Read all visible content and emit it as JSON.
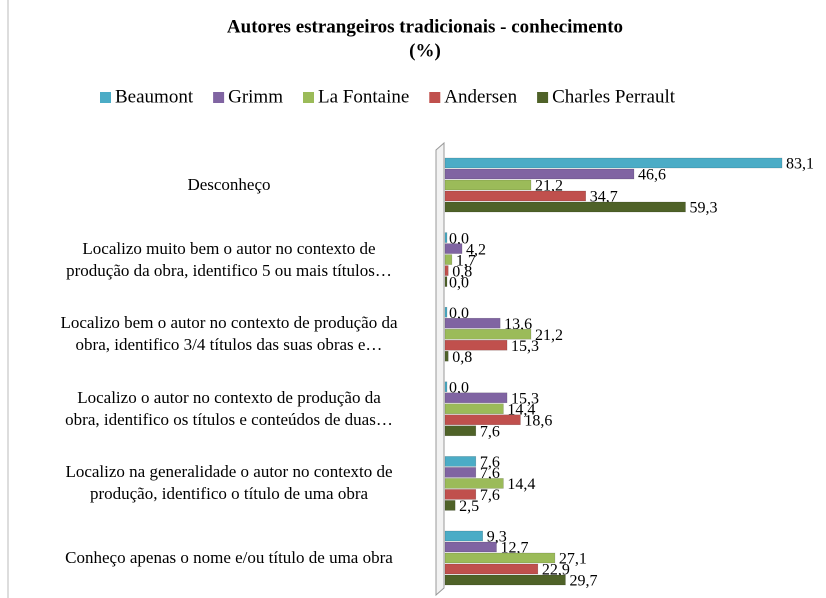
{
  "chart_data": {
    "type": "bar",
    "orientation": "horizontal",
    "title": "Autores estrangeiros tradicionais - conhecimento",
    "subtitle": "(%)",
    "categories": [
      "Desconheço",
      "Localizo muito bem o autor no contexto de\nprodução da obra, identifico 5 ou mais títulos…",
      "Localizo bem o autor no contexto de produção da\nobra, identifico 3/4 títulos das suas obras e…",
      "Localizo o autor no contexto de produção da\nobra, identifico os títulos e conteúdos de duas…",
      "Localizo na generalidade o autor no contexto de\nprodução, identifico o título de uma obra",
      "Conheço apenas o nome e/ou título de uma obra"
    ],
    "series": [
      {
        "name": "Beaumont",
        "color": "#4bacc6",
        "values": [
          83.1,
          0.0,
          0.0,
          0.0,
          7.6,
          9.3
        ],
        "value_labels": [
          "83,1",
          "0,0",
          "0,0",
          "0,0",
          "7,6",
          "9,3"
        ]
      },
      {
        "name": "Grimm",
        "color": "#8064a2",
        "values": [
          46.6,
          4.2,
          13.6,
          15.3,
          7.6,
          12.7
        ],
        "value_labels": [
          "46,6",
          "4,2",
          "13,6",
          "15,3",
          "7,6",
          "12,7"
        ]
      },
      {
        "name": "La Fontaine",
        "color": "#9bbb59",
        "values": [
          21.2,
          1.7,
          21.2,
          14.4,
          14.4,
          27.1
        ],
        "value_labels": [
          "21,2",
          "1,7",
          "21,2",
          "14,4",
          "14,4",
          "27,1"
        ]
      },
      {
        "name": "Andersen",
        "color": "#c0504d",
        "values": [
          34.7,
          0.8,
          15.3,
          18.6,
          7.6,
          22.9
        ],
        "value_labels": [
          "34,7",
          "0,8",
          "15,3",
          "18,6",
          "7,6",
          "22,9"
        ]
      },
      {
        "name": "Charles Perrault",
        "color": "#4f6228",
        "values": [
          59.3,
          0.0,
          0.8,
          7.6,
          2.5,
          29.7
        ],
        "value_labels": [
          "59,3",
          "0,0",
          "0,8",
          "7,6",
          "2,5",
          "29,7"
        ]
      }
    ],
    "xlim": [
      0,
      90
    ],
    "legend": "top"
  }
}
